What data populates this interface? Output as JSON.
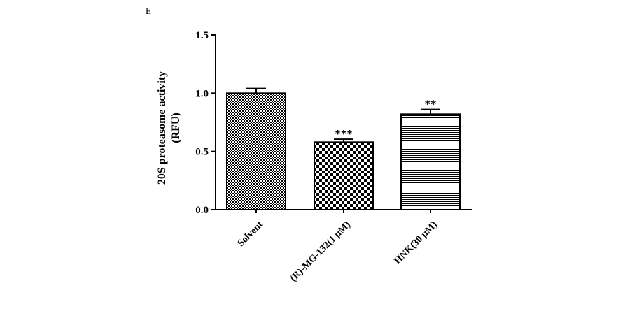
{
  "panel_label": "E",
  "chart_data": {
    "type": "bar",
    "categories": [
      "Solvent",
      "(R)-MG-132(1 μM)",
      "HNK(30 μM)"
    ],
    "values": [
      1.0,
      0.58,
      0.82
    ],
    "errors": [
      0.04,
      0.025,
      0.04
    ],
    "significance": [
      "",
      "***",
      "**"
    ],
    "patterns": [
      "fine-checker",
      "coarse-checker",
      "horizontal-lines"
    ],
    "title": "",
    "xlabel": "",
    "ylabel": [
      "20S proteasome activity",
      "(RFU)"
    ],
    "ylim": [
      0,
      1.5
    ],
    "yticks": [
      "0.0",
      "0.5",
      "1.0",
      "1.5"
    ],
    "grid": false,
    "bar_edge_color": "#000000"
  }
}
